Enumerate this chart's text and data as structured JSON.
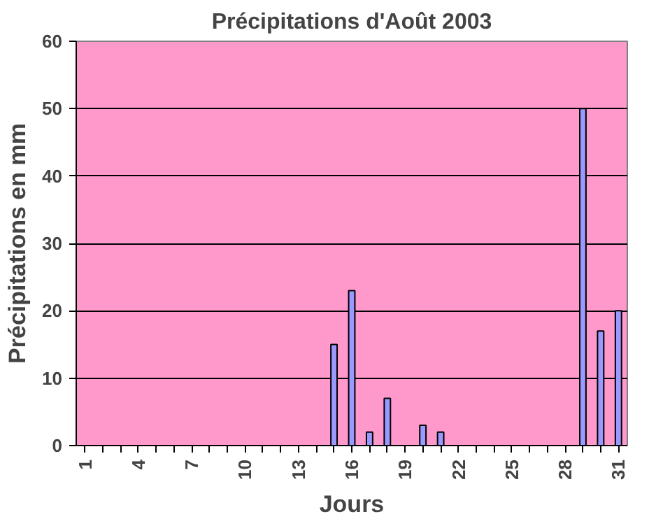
{
  "chart_data": {
    "type": "bar",
    "title": "Précipitations d'Août 2003",
    "xlabel": "Jours",
    "ylabel": "Précipitations en mm",
    "categories": [
      "1",
      null,
      null,
      "4",
      null,
      null,
      "7",
      null,
      null,
      "10",
      null,
      null,
      "13",
      null,
      null,
      "16",
      null,
      null,
      "19",
      null,
      null,
      "22",
      null,
      null,
      "25",
      null,
      null,
      "28",
      null,
      null,
      "31"
    ],
    "values": [
      0,
      0,
      0,
      0,
      0,
      0,
      0,
      0,
      0,
      0,
      0,
      0,
      0,
      0,
      15,
      23,
      2,
      7,
      0,
      3,
      2,
      0,
      0,
      0,
      0,
      0,
      0,
      0,
      50,
      17,
      20
    ],
    "color": "#9999ff",
    "ylim": [
      0,
      60
    ],
    "yticks": [
      0,
      10,
      20,
      30,
      40,
      50,
      60
    ],
    "grid": "y"
  }
}
